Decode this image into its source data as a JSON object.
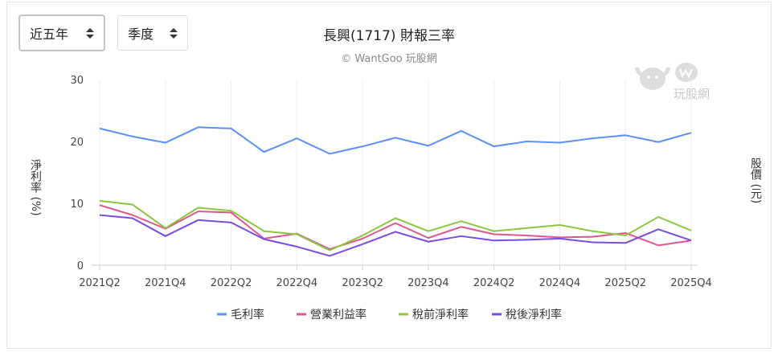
{
  "controls": {
    "range": "近五年",
    "period": "季度"
  },
  "watermark": "玩股網",
  "chart_data": {
    "type": "line",
    "title": "長興(1717) 財報三率",
    "subtitle": "© WantGoo 玩股網",
    "ylabel": "淨利率 (%)",
    "y2label": "股價 (元)",
    "ylim": [
      0,
      30
    ],
    "yticks": [
      "0",
      "10",
      "20",
      "30"
    ],
    "grid": true,
    "legend": "bottom",
    "x": [
      "2021Q2",
      "2021Q3",
      "2021Q4",
      "2022Q1",
      "2022Q2",
      "2022Q3",
      "2022Q4",
      "2023Q1",
      "2023Q2",
      "2023Q3",
      "2023Q4",
      "2024Q1",
      "2024Q2",
      "2024Q3",
      "2024Q4",
      "2025Q1",
      "2025Q2",
      "2025Q3",
      "2025Q4"
    ],
    "xticks": [
      "2021Q2",
      "2021Q4",
      "2022Q2",
      "2022Q4",
      "2023Q2",
      "2023Q4",
      "2024Q2",
      "2024Q4",
      "2025Q2",
      "2025Q4"
    ],
    "series": [
      {
        "name": "毛利率",
        "color": "#5b8ff9",
        "values": [
          22.1,
          20.8,
          19.8,
          22.3,
          22.1,
          18.3,
          20.5,
          18.0,
          19.2,
          20.6,
          19.3,
          21.7,
          19.2,
          20.0,
          19.8,
          20.5,
          21.0,
          19.9,
          21.4
        ]
      },
      {
        "name": "營業利益率",
        "color": "#e0568f",
        "values": [
          9.7,
          8.1,
          5.9,
          8.7,
          8.5,
          4.3,
          5.1,
          2.6,
          4.3,
          6.8,
          4.4,
          6.2,
          5.0,
          4.8,
          4.5,
          4.6,
          5.2,
          3.2,
          4.0
        ]
      },
      {
        "name": "稅前淨利率",
        "color": "#8cc63f",
        "values": [
          10.4,
          9.8,
          6.0,
          9.3,
          8.8,
          5.5,
          5.0,
          2.4,
          4.8,
          7.6,
          5.5,
          7.1,
          5.5,
          6.0,
          6.5,
          5.5,
          4.8,
          7.8,
          5.6
        ]
      },
      {
        "name": "稅後淨利率",
        "color": "#7b4be6",
        "values": [
          8.1,
          7.6,
          4.7,
          7.3,
          6.9,
          4.2,
          3.0,
          1.5,
          3.4,
          5.4,
          3.8,
          4.7,
          4.0,
          4.1,
          4.3,
          3.7,
          3.6,
          5.8,
          4.0
        ]
      }
    ]
  }
}
